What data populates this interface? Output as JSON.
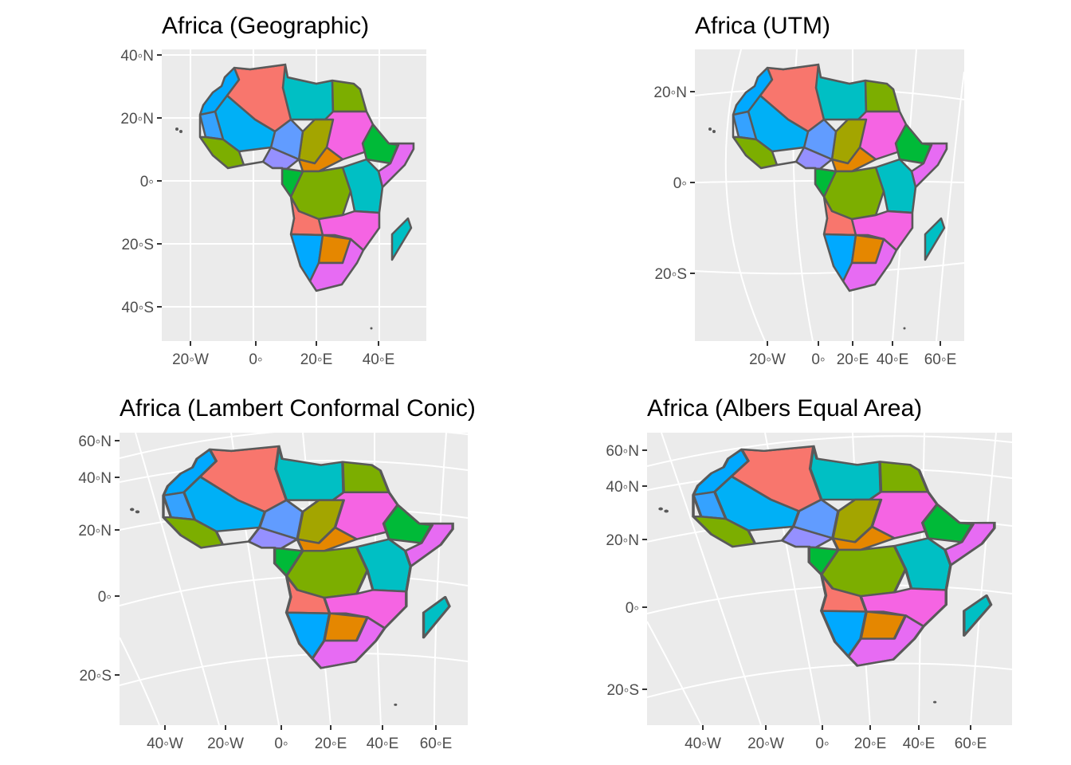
{
  "panels": [
    {
      "title": "Africa (Geographic)",
      "y_labels": [
        "40◦N",
        "20◦N",
        "0◦",
        "20◦S",
        "40◦S"
      ],
      "x_labels": [
        "20◦W",
        "0◦",
        "20◦E",
        "40◦E"
      ]
    },
    {
      "title": "Africa (UTM)",
      "y_labels": [
        "20◦N",
        "0◦",
        "20◦S"
      ],
      "x_labels": [
        "20◦W",
        "0◦",
        "20◦E",
        "40◦E",
        "60◦E"
      ]
    },
    {
      "title": "Africa (Lambert Conformal Conic)",
      "y_labels": [
        "60◦N",
        "40◦N",
        "20◦N",
        "0◦",
        "20◦S"
      ],
      "x_labels": [
        "40◦W",
        "20◦W",
        "0◦",
        "20◦E",
        "40◦E",
        "60◦E"
      ]
    },
    {
      "title": "Africa (Albers Equal Area)",
      "y_labels": [
        "60◦N",
        "40◦N",
        "20◦N",
        "0◦",
        "20◦S"
      ],
      "x_labels": [
        "40◦W",
        "20◦W",
        "0◦",
        "20◦E",
        "40◦E",
        "60◦E"
      ]
    }
  ]
}
